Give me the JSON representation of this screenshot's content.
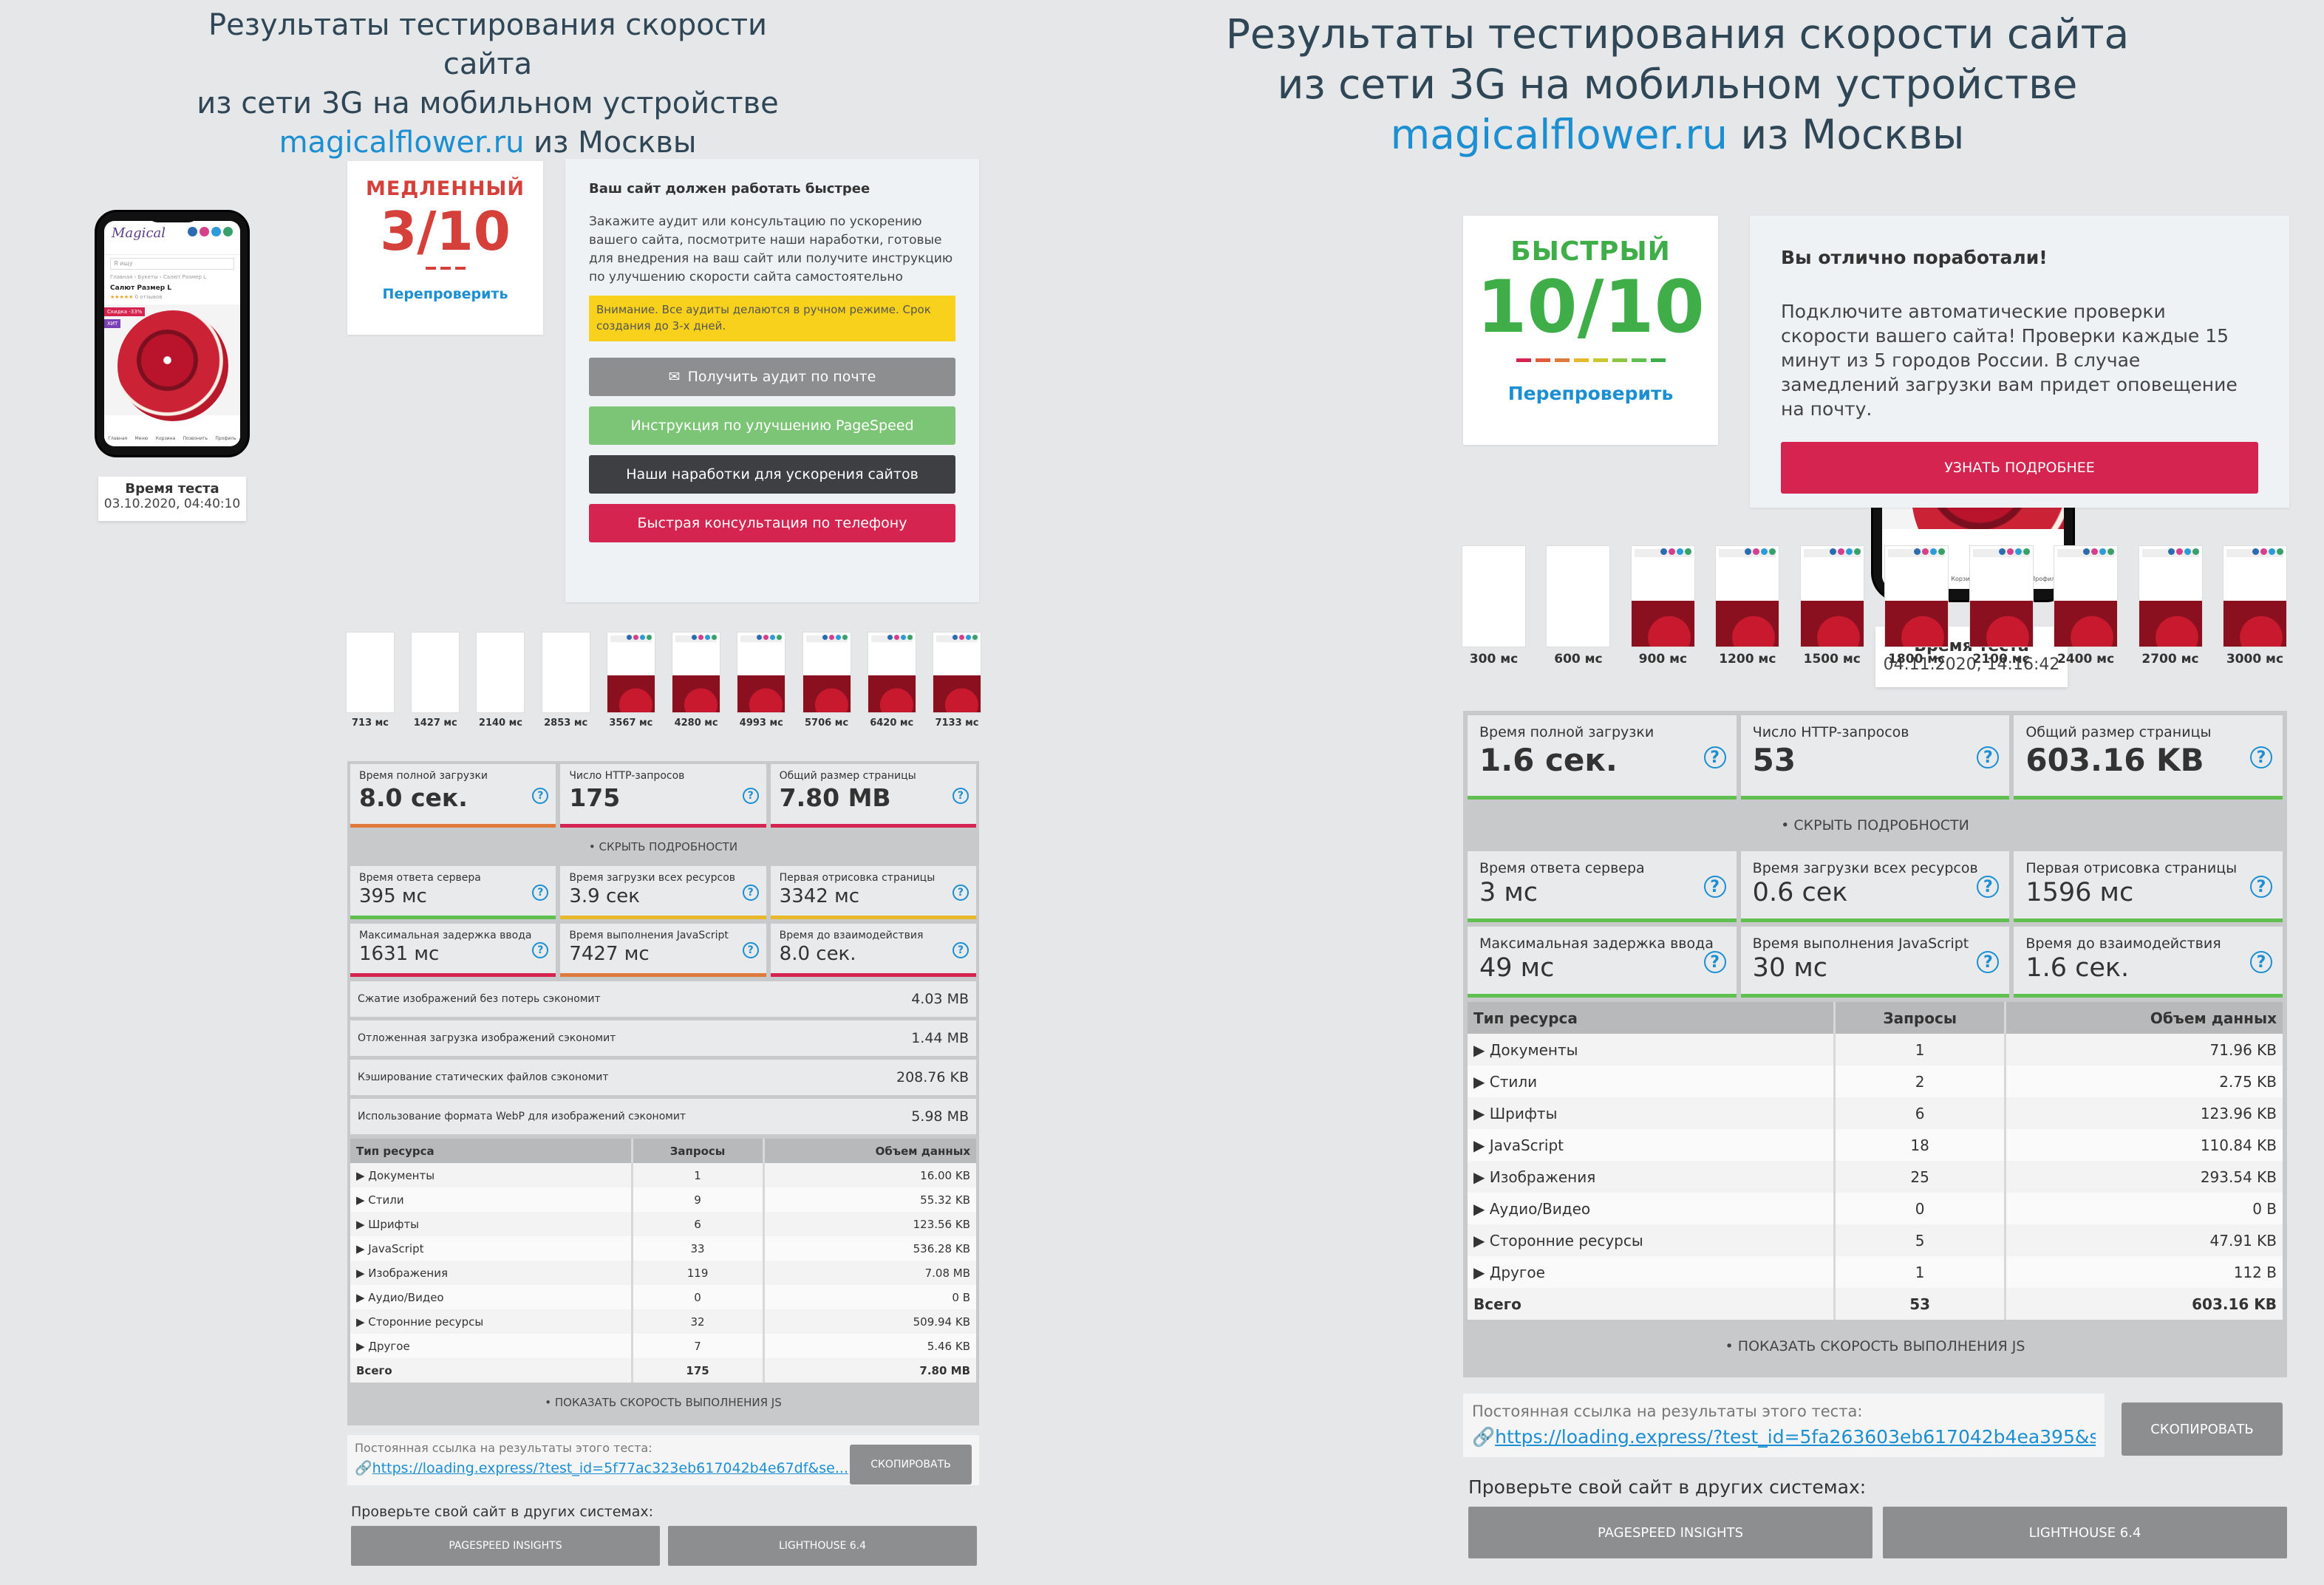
{
  "left": {
    "title": {
      "line1": "Результаты тестирования скорости сайта",
      "line2": "из сети 3G на мобильном устройстве",
      "link": "magicalflower.ru",
      "suffix": " из Москвы"
    },
    "test_time": {
      "label": "Время теста",
      "value": "03.10.2020, 04:40:10"
    },
    "score": {
      "label": "МЕДЛЕННЫЙ",
      "value": "3/10",
      "recheck": "Перепроверить",
      "color": "#d5403b"
    },
    "info": {
      "heading": "Ваш сайт должен работать быстрее",
      "text": "Закажите аудит или консультацию по ускорению вашего сайта, посмотрите наши наработки, готовые для внедрения на ваш сайт или получите инструкцию по улучшению скорости сайта самостоятельно",
      "warning": "Внимание. Все аудиты делаются в ручном режиме. Срок создания до 3-х дней.",
      "btn_audit": "Получить аудит по почте",
      "btn_pagespeed": "Инструкция по улучшению PageSpeed",
      "btn_works": "Наши наработки для ускорения сайтов",
      "btn_consult": "Быстрая консультация по телефону"
    },
    "frames": [
      "713 мс",
      "1427 мс",
      "2140 мс",
      "2853 мс",
      "3567 мс",
      "4280 мс",
      "4993 мс",
      "5706 мс",
      "6420 мс",
      "7133 мс"
    ],
    "metrics_top": [
      {
        "label": "Время полной загрузки",
        "value": "8.0 сек.",
        "color": "#e07a3c"
      },
      {
        "label": "Число HTTP-запросов",
        "value": "175",
        "color": "#d5244f"
      },
      {
        "label": "Общий размер страницы",
        "value": "7.80 MB",
        "color": "#d5244f"
      }
    ],
    "toggle_details": "• СКРЫТЬ ПОДРОБНОСТИ",
    "metrics_more": [
      {
        "label": "Время ответа сервера",
        "value": "395 мс",
        "color": "#5fbf4f"
      },
      {
        "label": "Время загрузки всех ресурсов",
        "value": "3.9 сек",
        "color": "#e8b82a"
      },
      {
        "label": "Первая отрисовка страницы",
        "value": "3342 мс",
        "color": "#e8b82a"
      },
      {
        "label": "Максимальная задержка ввода",
        "value": "1631 мс",
        "color": "#d5244f"
      },
      {
        "label": "Время выполнения JavaScript",
        "value": "7427 мс",
        "color": "#e07a3c"
      },
      {
        "label": "Время до взаимодействия",
        "value": "8.0 сек.",
        "color": "#d5244f"
      }
    ],
    "optimizations": [
      {
        "label": "Сжатие изображений без потерь сэкономит",
        "value": "4.03 MB"
      },
      {
        "label": "Отложенная загрузка изображений сэкономит",
        "value": "1.44 MB"
      },
      {
        "label": "Кэширование статических файлов сэкономит",
        "value": "208.76 KB"
      },
      {
        "label": "Использование формата WebP для изображений сэкономит",
        "value": "5.98 MB"
      }
    ],
    "table": {
      "headers": [
        "Тип ресурса",
        "Запросы",
        "Объем данных"
      ],
      "rows": [
        [
          "▶ Документы",
          "1",
          "16.00 KB"
        ],
        [
          "▶ Стили",
          "9",
          "55.32 KB"
        ],
        [
          "▶ Шрифты",
          "6",
          "123.56 KB"
        ],
        [
          "▶ JavaScript",
          "33",
          "536.28 KB"
        ],
        [
          "▶ Изображения",
          "119",
          "7.08 MB"
        ],
        [
          "▶ Аудио/Видео",
          "0",
          "0 B"
        ],
        [
          "▶ Сторонние ресурсы",
          "32",
          "509.94 KB"
        ],
        [
          "▶ Другое",
          "7",
          "5.46 KB"
        ]
      ],
      "total": [
        "Всего",
        "175",
        "7.80 MB"
      ]
    },
    "toggle_js": "• ПОКАЗАТЬ СКОРОСТЬ ВЫПОЛНЕНИЯ JS",
    "permalink": {
      "label": "Постоянная ссылка на результаты этого теста:",
      "url": "https://loading.express/?test_id=5f77ac323eb617042b4e67df&se...",
      "copy": "СКОПИРОВАТЬ"
    },
    "other": {
      "label": "Проверьте свой сайт в других системах:",
      "btn1": "PAGESPEED INSIGHTS",
      "btn2": "LIGHTHOUSE 6.4"
    }
  },
  "right": {
    "title": {
      "line1": "Результаты тестирования скорости сайта",
      "line2": "из сети 3G на мобильном устройстве",
      "link": "magicalflower.ru",
      "suffix": " из Москвы"
    },
    "test_time": {
      "label": "Время теста",
      "value": "04.11.2020, 14:16:42"
    },
    "score": {
      "label": "БЫСТРЫЙ",
      "value": "10/10",
      "recheck": "Перепроверить",
      "color": "#3fae49"
    },
    "info": {
      "heading": "Вы отлично поработали!",
      "text": "Подключите автоматические проверки скорости вашего сайта! Проверки каждые 15 минут из 5 городов России. В случае замедлений загрузки вам придет оповещение на почту.",
      "btn": "УЗНАТЬ ПОДРОБНЕЕ"
    },
    "frames": [
      "300 мс",
      "600 мс",
      "900 мс",
      "1200 мс",
      "1500 мс",
      "1800 мс",
      "2100 мс",
      "2400 мс",
      "2700 мс",
      "3000 мс"
    ],
    "metrics_top": [
      {
        "label": "Время полной загрузки",
        "value": "1.6 сек.",
        "color": "#5fbf4f"
      },
      {
        "label": "Число HTTP-запросов",
        "value": "53",
        "color": "#5fbf4f"
      },
      {
        "label": "Общий размер страницы",
        "value": "603.16 KB",
        "color": "#5fbf4f"
      }
    ],
    "toggle_details": "• СКРЫТЬ ПОДРОБНОСТИ",
    "metrics_more": [
      {
        "label": "Время ответа сервера",
        "value": "3 мс",
        "color": "#5fbf4f"
      },
      {
        "label": "Время загрузки всех ресурсов",
        "value": "0.6 сек",
        "color": "#5fbf4f"
      },
      {
        "label": "Первая отрисовка страницы",
        "value": "1596 мс",
        "color": "#5fbf4f"
      },
      {
        "label": "Максимальная задержка ввода",
        "value": "49 мс",
        "color": "#5fbf4f"
      },
      {
        "label": "Время выполнения JavaScript",
        "value": "30 мс",
        "color": "#5fbf4f"
      },
      {
        "label": "Время до взаимодействия",
        "value": "1.6 сек.",
        "color": "#5fbf4f"
      }
    ],
    "table": {
      "headers": [
        "Тип ресурса",
        "Запросы",
        "Объем данных"
      ],
      "rows": [
        [
          "▶ Документы",
          "1",
          "71.96 KB"
        ],
        [
          "▶ Стили",
          "2",
          "2.75 KB"
        ],
        [
          "▶ Шрифты",
          "6",
          "123.96 KB"
        ],
        [
          "▶ JavaScript",
          "18",
          "110.84 KB"
        ],
        [
          "▶ Изображения",
          "25",
          "293.54 KB"
        ],
        [
          "▶ Аудио/Видео",
          "0",
          "0 B"
        ],
        [
          "▶ Сторонние ресурсы",
          "5",
          "47.91 KB"
        ],
        [
          "▶ Другое",
          "1",
          "112 B"
        ]
      ],
      "total": [
        "Всего",
        "53",
        "603.16 KB"
      ]
    },
    "toggle_js": "• ПОКАЗАТЬ СКОРОСТЬ ВЫПОЛНЕНИЯ JS",
    "permalink": {
      "label": "Постоянная ссылка на результаты этого теста:",
      "url": "https://loading.express/?test_id=5fa263603eb617042b4ea395&s...",
      "copy": "СКОПИРОВАТЬ"
    },
    "other": {
      "label": "Проверьте свой сайт в других системах:",
      "btn1": "PAGESPEED INSIGHTS",
      "btn2": "LIGHTHOUSE 6.4"
    }
  },
  "phone_site": {
    "search_placeholder": "Я ищу",
    "breadcrumb": "Главная › Букеты › Салют Размер L",
    "product": "Салют Размер L",
    "rating_text": "0 отзывов",
    "sale_badge": "Скидка -33%",
    "hit_badge": "ХИТ",
    "nav": [
      "Главная",
      "Меню",
      "Корзина",
      "Позвонить",
      "Профиль"
    ]
  },
  "colors": {
    "dash_slow": "#d5403b",
    "gradient": [
      "#d5244f",
      "#e05a3c",
      "#e07a3c",
      "#e8b82a",
      "#c9c92f",
      "#8cc444",
      "#5fbf4f",
      "#3fae49"
    ]
  }
}
